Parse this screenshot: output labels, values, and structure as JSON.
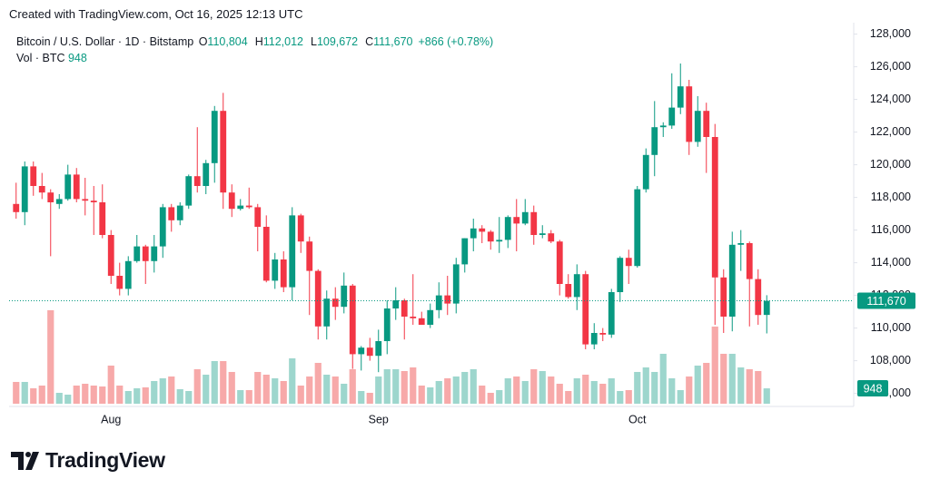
{
  "header": {
    "created": "Created with TradingView.com, Oct 16, 2025 12:13 UTC"
  },
  "footer": {
    "brand": "TradingView"
  },
  "chart_data": {
    "type": "candlestick",
    "title": "Bitcoin / U.S. Dollar · 1D · Bitstamp",
    "legend": [
      {
        "key": "O",
        "label": "110,804"
      },
      {
        "key": "H",
        "label": "112,012"
      },
      {
        "key": "L",
        "label": "109,672"
      },
      {
        "key": "C",
        "label": "111,670"
      }
    ],
    "change_label": "+866 (+0.78%)",
    "volume_title": "Vol · BTC",
    "volume_label": "948",
    "last_price": {
      "value": 111670,
      "label": "111,670"
    },
    "up_color": "#089981",
    "down_color": "#f23645",
    "volume_up_color": "#9dd6cd",
    "volume_down_color": "#f7a9a9",
    "grid": false,
    "categories": [
      null,
      null,
      null,
      null,
      null,
      null,
      null,
      null,
      null,
      null,
      null,
      "Aug",
      null,
      null,
      null,
      null,
      null,
      null,
      null,
      null,
      null,
      null,
      null,
      null,
      null,
      null,
      null,
      null,
      null,
      null,
      null,
      null,
      null,
      null,
      null,
      null,
      null,
      null,
      null,
      null,
      null,
      null,
      "Sep",
      null,
      null,
      null,
      null,
      null,
      null,
      null,
      null,
      null,
      null,
      null,
      null,
      null,
      null,
      null,
      null,
      null,
      null,
      null,
      null,
      null,
      null,
      null,
      null,
      null,
      null,
      null,
      null,
      null,
      "Oct",
      null,
      null,
      null,
      null,
      null,
      null,
      null,
      null,
      null,
      null,
      null,
      null,
      null,
      null,
      null
    ],
    "open": [
      117600,
      117100,
      119900,
      118700,
      118300,
      117600,
      117900,
      119400,
      117900,
      117800,
      117700,
      115700,
      113200,
      112400,
      114100,
      115000,
      114100,
      115000,
      117400,
      116600,
      117500,
      119300,
      118700,
      120100,
      123300,
      118300,
      117300,
      117500,
      117400,
      116200,
      112900,
      114200,
      112500,
      116900,
      115300,
      113500,
      110100,
      111800,
      111300,
      112600,
      108400,
      108800,
      108300,
      109200,
      111200,
      111700,
      110700,
      110600,
      110200,
      111100,
      112000,
      111500,
      113900,
      115500,
      116100,
      115900,
      115300,
      115400,
      116800,
      116400,
      117100,
      115700,
      115800,
      115300,
      112700,
      111900,
      113300,
      109000,
      109700,
      109600,
      112200,
      114300,
      113800,
      118500,
      120600,
      122300,
      122400,
      123500,
      124800,
      121400,
      123300,
      121700,
      113100,
      110700,
      115100,
      115200,
      113000,
      110804
    ],
    "high": [
      118900,
      120200,
      120200,
      119500,
      118500,
      118200,
      120000,
      119800,
      119200,
      118700,
      118800,
      116000,
      114000,
      114400,
      115700,
      115100,
      115700,
      117600,
      117600,
      117700,
      119400,
      122300,
      120300,
      123600,
      124400,
      118800,
      117900,
      118600,
      117600,
      116900,
      114600,
      114700,
      117400,
      117000,
      115600,
      113600,
      112300,
      112500,
      113400,
      112700,
      108900,
      109400,
      109900,
      111700,
      112500,
      111800,
      113300,
      111000,
      111500,
      112800,
      113200,
      114300,
      115500,
      116700,
      116300,
      116000,
      116800,
      116900,
      117900,
      117900,
      117500,
      116300,
      116000,
      115400,
      113300,
      113900,
      113500,
      110300,
      110000,
      112400,
      114400,
      114800,
      118700,
      121000,
      123900,
      122600,
      125600,
      126200,
      125200,
      124200,
      123800,
      122500,
      113600,
      115900,
      116000,
      115300,
      113600,
      112012
    ],
    "low": [
      116700,
      116300,
      118100,
      117900,
      114400,
      117300,
      117800,
      117700,
      116900,
      115700,
      115500,
      112700,
      112000,
      112000,
      114000,
      112700,
      113400,
      114300,
      115900,
      116300,
      117300,
      118300,
      118200,
      118900,
      117300,
      116800,
      117200,
      117300,
      114700,
      112800,
      112400,
      112200,
      111700,
      114600,
      110800,
      109300,
      109300,
      110500,
      110900,
      107500,
      107400,
      108000,
      107300,
      108400,
      110500,
      109300,
      110200,
      110200,
      110000,
      110600,
      110800,
      110900,
      113400,
      114700,
      115200,
      114800,
      114600,
      114900,
      114700,
      116300,
      115100,
      115500,
      115200,
      112000,
      111800,
      111100,
      108700,
      108700,
      109200,
      109400,
      111600,
      112700,
      113700,
      118300,
      119300,
      121700,
      122200,
      123100,
      120600,
      121100,
      119500,
      110200,
      109700,
      109800,
      113500,
      110100,
      110200,
      109672
    ],
    "close": [
      117100,
      119900,
      118700,
      118300,
      117700,
      117900,
      119400,
      117900,
      117800,
      117700,
      115700,
      113200,
      112400,
      114100,
      115000,
      114100,
      115000,
      117400,
      116600,
      117500,
      119300,
      118700,
      120100,
      123300,
      118300,
      117300,
      117500,
      117400,
      116200,
      112900,
      114200,
      112500,
      116900,
      115300,
      113500,
      110100,
      111800,
      111300,
      112600,
      108400,
      108800,
      108300,
      109200,
      111200,
      111700,
      110700,
      110600,
      110200,
      111100,
      112000,
      111500,
      113900,
      115500,
      116100,
      115900,
      115300,
      115400,
      116800,
      116400,
      117100,
      115700,
      115800,
      115300,
      112700,
      111900,
      113300,
      109000,
      109700,
      109600,
      112200,
      114300,
      113800,
      118500,
      120600,
      122300,
      122400,
      123500,
      124800,
      121400,
      123300,
      121700,
      113100,
      110700,
      115100,
      115200,
      113000,
      110800,
      111670
    ],
    "volume": [
      1344,
      1344,
      952,
      1120,
      5768,
      672,
      560,
      1120,
      1232,
      1120,
      1064,
      2352,
      1120,
      784,
      952,
      1008,
      1400,
      1568,
      1680,
      896,
      784,
      2128,
      1792,
      2632,
      2632,
      1960,
      840,
      840,
      1960,
      1792,
      1568,
      1400,
      2800,
      1120,
      1680,
      2520,
      1792,
      1680,
      1232,
      2128,
      784,
      672,
      1680,
      2128,
      2128,
      2016,
      2240,
      1120,
      1008,
      1400,
      1568,
      1680,
      1960,
      2128,
      1120,
      672,
      840,
      1568,
      1680,
      1400,
      2128,
      2016,
      1680,
      1232,
      784,
      1568,
      1792,
      1400,
      1232,
      1568,
      784,
      840,
      1960,
      2240,
      1960,
      3080,
      1568,
      840,
      1680,
      2352,
      2520,
      4760,
      3080,
      3080,
      2240,
      2128,
      2016,
      948
    ],
    "ylim": [
      105200,
      128700
    ],
    "yticks": [
      {
        "value": 106000,
        "label": "106,000"
      },
      {
        "value": 108000,
        "label": "108,000"
      },
      {
        "value": 110000,
        "label": "110,000"
      },
      {
        "value": 112000,
        "label": "112,000"
      },
      {
        "value": 114000,
        "label": "114,000"
      },
      {
        "value": 116000,
        "label": "116,000"
      },
      {
        "value": 118000,
        "label": "118,000"
      },
      {
        "value": 120000,
        "label": "120,000"
      },
      {
        "value": 122000,
        "label": "122,000"
      },
      {
        "value": 124000,
        "label": "124,000"
      },
      {
        "value": 126000,
        "label": "126,000"
      },
      {
        "value": 128000,
        "label": "128,000"
      }
    ],
    "y2lim": [
      0,
      7500
    ]
  }
}
